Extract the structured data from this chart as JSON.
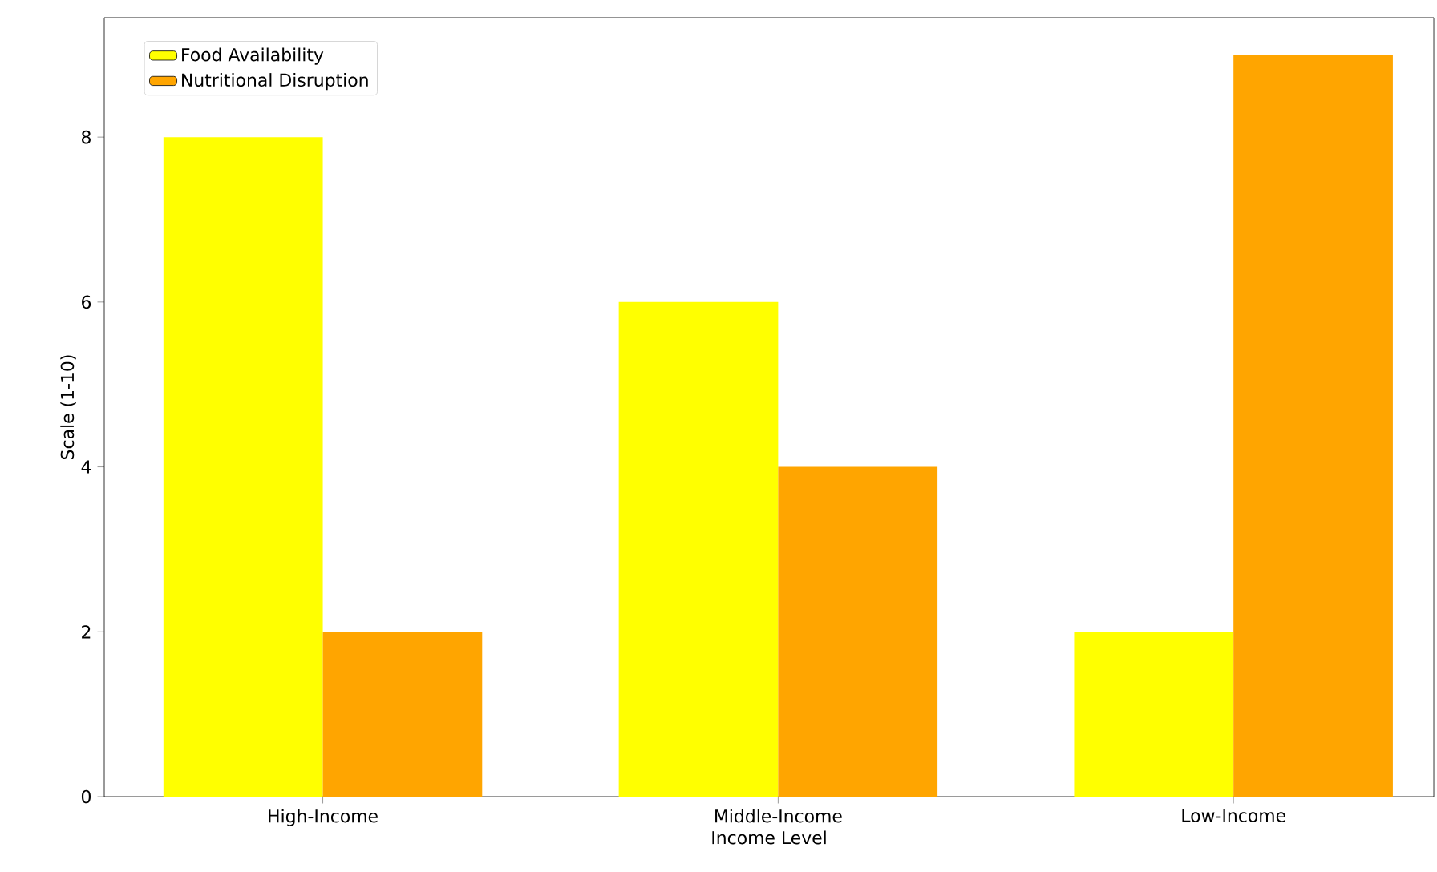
{
  "chart_data": {
    "type": "bar",
    "xlabel": "Income Level",
    "ylabel": "Scale (1-10)",
    "categories": [
      "High-Income",
      "Middle-Income",
      "Low-Income"
    ],
    "series": [
      {
        "name": "Food Availability",
        "color": "#ffff00",
        "values": [
          8,
          6,
          2
        ]
      },
      {
        "name": "Nutritional Disruption",
        "color": "#ffa500",
        "values": [
          2,
          4,
          9
        ]
      }
    ],
    "ylim": [
      0,
      9.45
    ],
    "yticks": [
      0,
      2,
      4,
      6,
      8
    ],
    "legend": "top left",
    "grid": false
  }
}
